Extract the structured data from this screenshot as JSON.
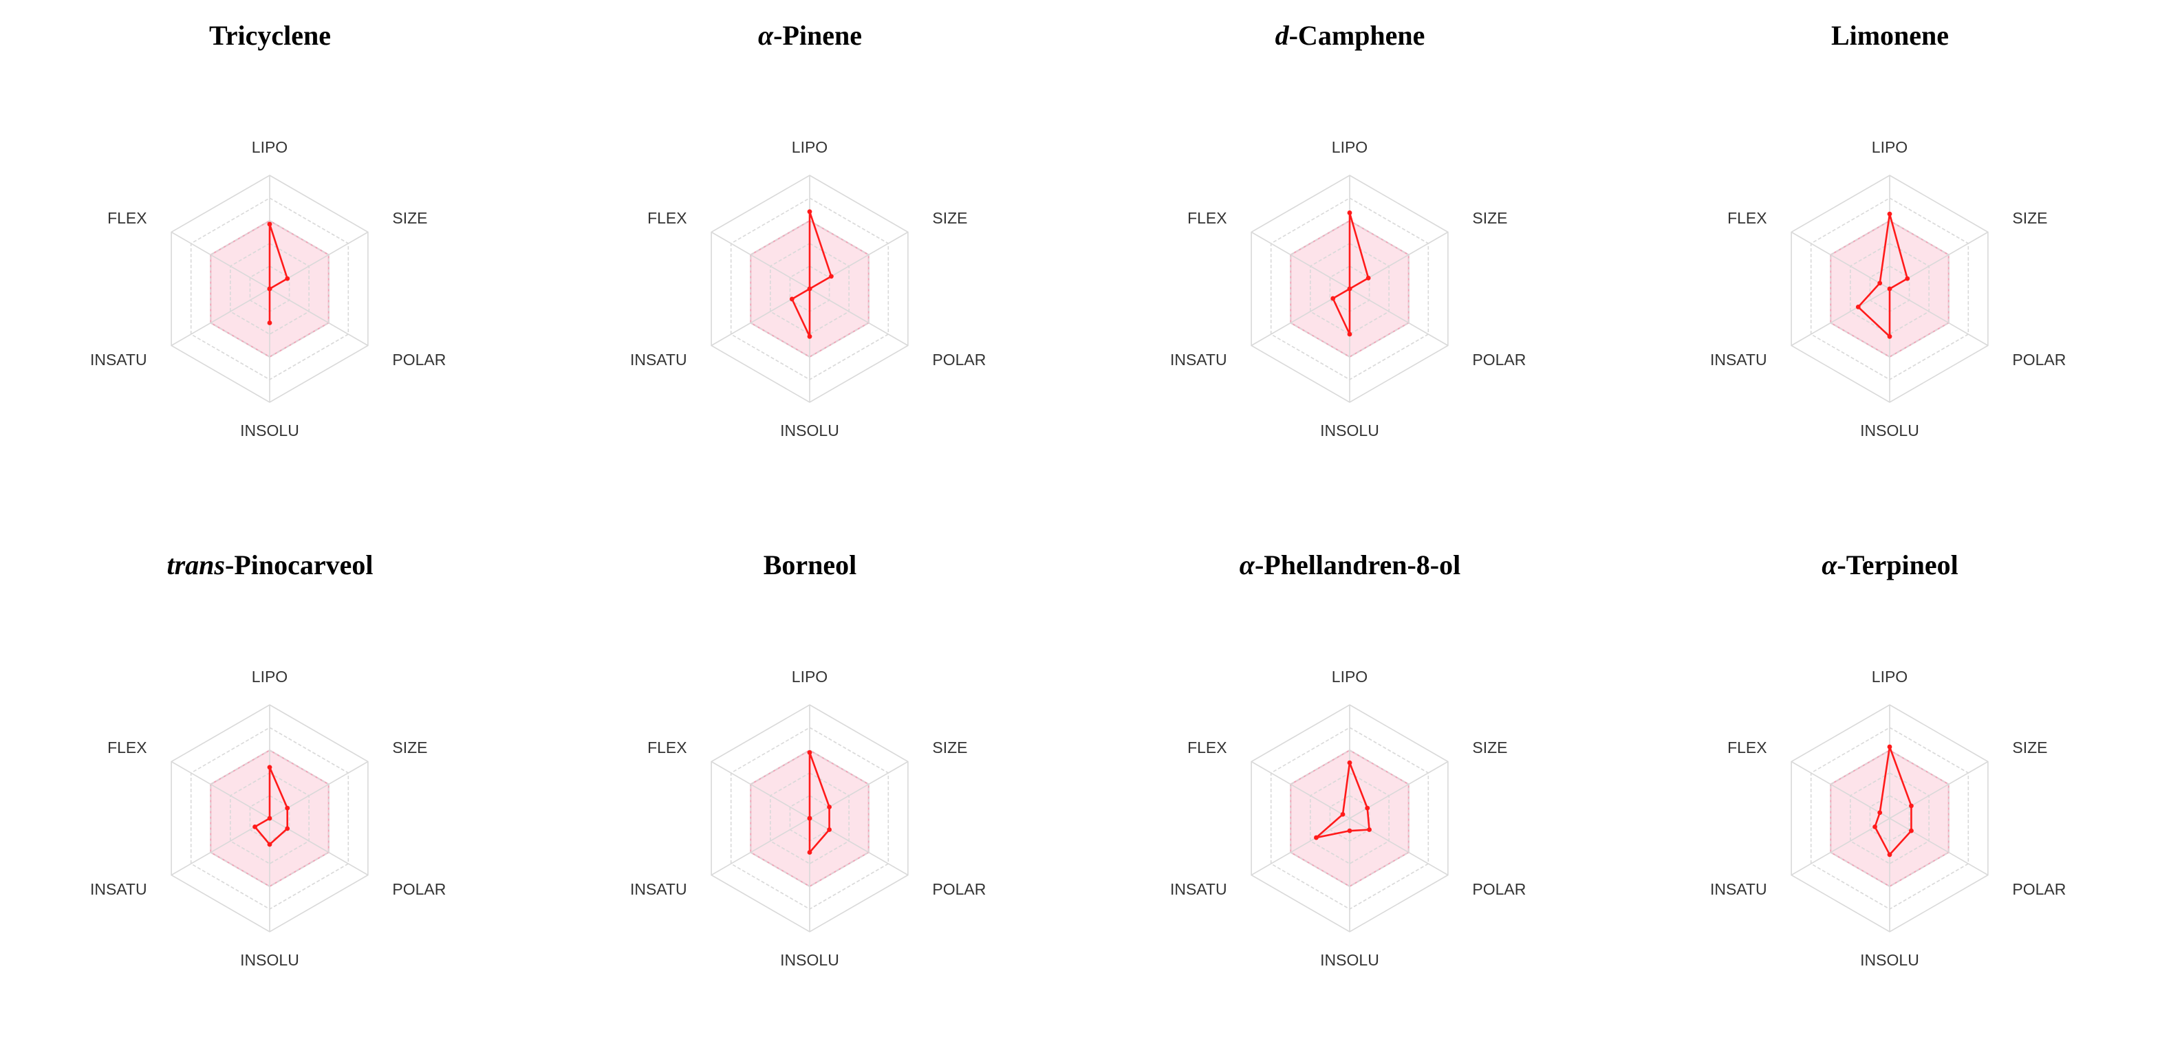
{
  "style": {
    "grid_color": "#d9d9d9",
    "optimal_fill": "#fde3ea",
    "optimal_stroke": "#f0a3b7",
    "series_color": "#ff1a1a"
  },
  "chart_data": [
    {
      "type": "radar",
      "title": {
        "prefix": "",
        "name": "Tricyclene"
      },
      "axes": [
        "LIPO",
        "SIZE",
        "POLAR",
        "INSOLU",
        "INSATU",
        "FLEX"
      ],
      "range": [
        0,
        1
      ],
      "optimal_range": 0.6,
      "grid_levels": 5,
      "values": [
        0.57,
        0.18,
        0.0,
        0.3,
        0.0,
        0.0
      ]
    },
    {
      "type": "radar",
      "title": {
        "prefix": "α",
        "name": "-Pinene"
      },
      "axes": [
        "LIPO",
        "SIZE",
        "POLAR",
        "INSOLU",
        "INSATU",
        "FLEX"
      ],
      "range": [
        0,
        1
      ],
      "optimal_range": 0.6,
      "grid_levels": 5,
      "values": [
        0.68,
        0.22,
        0.0,
        0.42,
        0.18,
        0.0
      ]
    },
    {
      "type": "radar",
      "title": {
        "prefix": "d",
        "name": "-Camphene"
      },
      "axes": [
        "LIPO",
        "SIZE",
        "POLAR",
        "INSOLU",
        "INSATU",
        "FLEX"
      ],
      "range": [
        0,
        1
      ],
      "optimal_range": 0.6,
      "grid_levels": 5,
      "values": [
        0.67,
        0.19,
        0.0,
        0.4,
        0.17,
        0.0
      ]
    },
    {
      "type": "radar",
      "title": {
        "prefix": "",
        "name": "Limonene"
      },
      "axes": [
        "LIPO",
        "SIZE",
        "POLAR",
        "INSOLU",
        "INSATU",
        "FLEX"
      ],
      "range": [
        0,
        1
      ],
      "optimal_range": 0.6,
      "grid_levels": 5,
      "values": [
        0.66,
        0.18,
        0.0,
        0.42,
        0.32,
        0.1
      ]
    },
    {
      "type": "radar",
      "title": {
        "prefix": "trans",
        "name": "-Pinocarveol"
      },
      "axes": [
        "LIPO",
        "SIZE",
        "POLAR",
        "INSOLU",
        "INSATU",
        "FLEX"
      ],
      "range": [
        0,
        1
      ],
      "optimal_range": 0.6,
      "grid_levels": 5,
      "values": [
        0.45,
        0.18,
        0.18,
        0.23,
        0.15,
        0.0
      ]
    },
    {
      "type": "radar",
      "title": {
        "prefix": "",
        "name": "Borneol"
      },
      "axes": [
        "LIPO",
        "SIZE",
        "POLAR",
        "INSOLU",
        "INSATU",
        "FLEX"
      ],
      "range": [
        0,
        1
      ],
      "optimal_range": 0.6,
      "grid_levels": 5,
      "values": [
        0.58,
        0.2,
        0.2,
        0.3,
        0.0,
        0.0
      ]
    },
    {
      "type": "radar",
      "title": {
        "prefix": "α",
        "name": "-Phellandren-8-ol"
      },
      "axes": [
        "LIPO",
        "SIZE",
        "POLAR",
        "INSOLU",
        "INSATU",
        "FLEX"
      ],
      "range": [
        0,
        1
      ],
      "optimal_range": 0.6,
      "grid_levels": 5,
      "values": [
        0.49,
        0.18,
        0.2,
        0.11,
        0.34,
        0.07
      ]
    },
    {
      "type": "radar",
      "title": {
        "prefix": "α",
        "name": "-Terpineol"
      },
      "axes": [
        "LIPO",
        "SIZE",
        "POLAR",
        "INSOLU",
        "INSATU",
        "FLEX"
      ],
      "range": [
        0,
        1
      ],
      "optimal_range": 0.6,
      "grid_levels": 5,
      "values": [
        0.63,
        0.22,
        0.22,
        0.32,
        0.15,
        0.1
      ]
    }
  ]
}
